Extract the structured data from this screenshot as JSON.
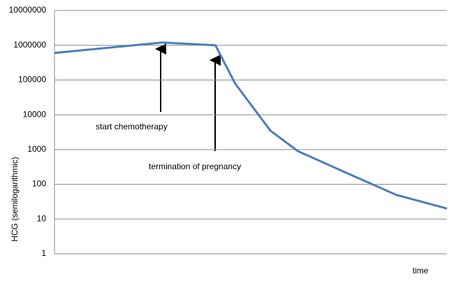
{
  "chart_data": {
    "type": "line",
    "y_label": "HCG (semilogarithmic)",
    "x_label": "time",
    "annotations": [
      "start chemotherapy",
      "termination of pregnancy"
    ],
    "x": [
      0,
      27.5,
      41,
      46,
      55,
      62,
      73,
      87,
      100
    ],
    "xlim": [
      0,
      100
    ],
    "series": [
      {
        "color": "#4a7ebb",
        "values": [
          600000,
          1200000,
          1000000,
          80000,
          3500,
          900,
          250,
          50,
          20
        ]
      }
    ],
    "ylim": [
      1,
      10000000
    ],
    "yticks": [
      1,
      10,
      100,
      1000,
      10000,
      100000,
      1000000,
      10000000
    ],
    "log_scale": true,
    "grid": true
  }
}
